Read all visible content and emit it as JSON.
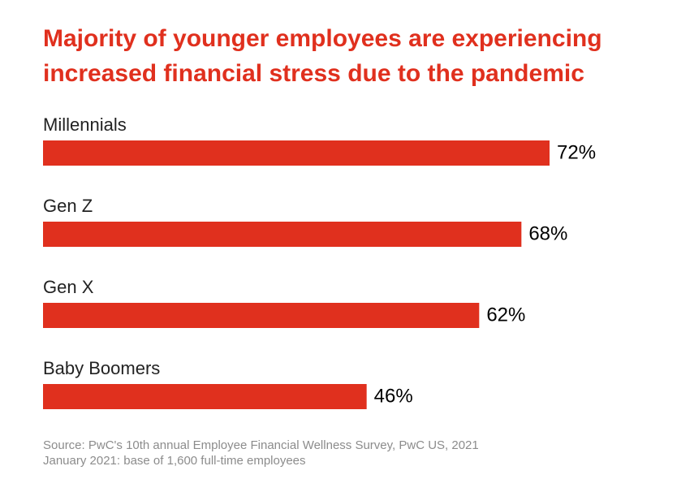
{
  "chart_data": {
    "type": "bar",
    "orientation": "horizontal",
    "title": "Majority of younger employees are experiencing increased financial stress due to the pandemic",
    "categories": [
      "Millennials",
      "Gen Z",
      "Gen X",
      "Baby Boomers"
    ],
    "values": [
      72,
      68,
      62,
      46
    ],
    "value_labels": [
      "72%",
      "68%",
      "62%",
      "46%"
    ],
    "color": "#e0301e",
    "source": "Source: PwC's 10th annual Employee Financial Wellness Survey, PwC US, 2021",
    "note": "January 2021: base of 1,600 full-time employees"
  }
}
